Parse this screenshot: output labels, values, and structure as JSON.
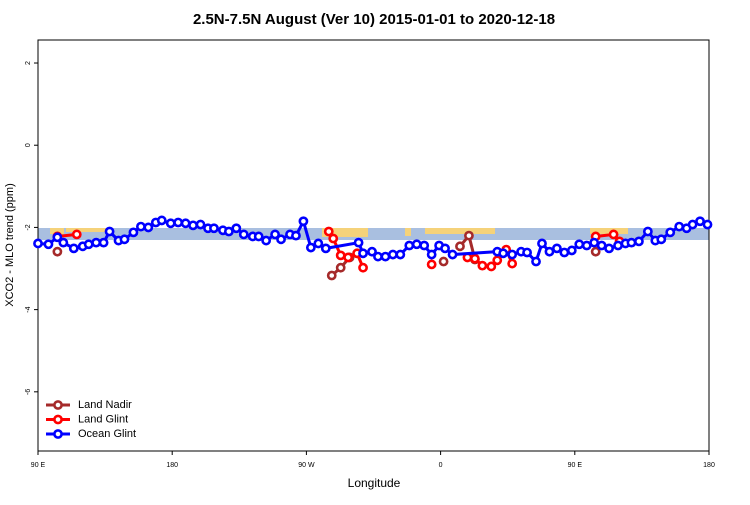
{
  "chart_data": {
    "type": "line",
    "title": "2.5N-7.5N August (Ver 10)   2015-01-01 to 2020-12-18",
    "x_label": "Longitude",
    "y_label": "XCO2 - MLO trend (ppm)",
    "xlim": [
      90,
      540
    ],
    "xticks": [
      {
        "value": 90,
        "label": "90 E"
      },
      {
        "value": 180,
        "label": "180"
      },
      {
        "value": 270,
        "label": "90 W"
      },
      {
        "value": 360,
        "label": "0"
      },
      {
        "value": 450,
        "label": "90 E"
      },
      {
        "value": 540,
        "label": "180"
      }
    ],
    "ylim": [
      -7.44,
      2.56
    ],
    "yticks": [
      2,
      0,
      -2,
      -4,
      -6
    ],
    "legend": "bottom-left",
    "series": [
      {
        "name": "Land Nadir",
        "color": "#a52a2a",
        "x": [
          103,
          null,
          287,
          293,
          299,
          null,
          362,
          null,
          373,
          379,
          383,
          null,
          464
        ],
        "values": [
          -2.59,
          null,
          -3.17,
          -2.98,
          -2.73,
          null,
          -2.83,
          null,
          -2.46,
          -2.2,
          -2.78,
          null,
          -2.59
        ]
      },
      {
        "name": "Land Glint",
        "color": "#ff0000",
        "x": [
          103,
          116,
          null,
          285,
          288,
          293,
          298,
          304,
          308,
          null,
          354,
          null,
          378,
          383,
          388,
          394,
          398,
          404,
          408,
          null,
          464,
          476,
          480
        ],
        "values": [
          -2.22,
          -2.17,
          null,
          -2.1,
          -2.27,
          -2.68,
          -2.73,
          -2.63,
          -2.98,
          null,
          -2.9,
          null,
          -2.73,
          -2.76,
          -2.93,
          -2.95,
          -2.8,
          -2.54,
          -2.88,
          null,
          -2.22,
          -2.17,
          -2.34
        ]
      },
      {
        "name": "Ocean Glint",
        "color": "#0000ff",
        "x": [
          90,
          97,
          103,
          107,
          114,
          120,
          124,
          129,
          134,
          138,
          144,
          148,
          154,
          159,
          164,
          169,
          173,
          179,
          184,
          189,
          194,
          199,
          204,
          208,
          214,
          218,
          223,
          228,
          234,
          238,
          243,
          249,
          253,
          259,
          263,
          268,
          273,
          278,
          283,
          305,
          308,
          314,
          318,
          323,
          328,
          333,
          339,
          344,
          349,
          354,
          359,
          363,
          368,
          398,
          402,
          408,
          414,
          418,
          424,
          428,
          433,
          438,
          443,
          448,
          453,
          458,
          463,
          468,
          473,
          479,
          484,
          488,
          493,
          499,
          504,
          508,
          514,
          520,
          525,
          529,
          534,
          539
        ],
        "values": [
          -2.39,
          -2.41,
          -2.24,
          -2.37,
          -2.51,
          -2.46,
          -2.41,
          -2.37,
          -2.37,
          -2.1,
          -2.32,
          -2.29,
          -2.12,
          -1.98,
          -2.0,
          -1.88,
          -1.83,
          -1.9,
          -1.88,
          -1.9,
          -1.95,
          -1.93,
          -2.02,
          -2.02,
          -2.07,
          -2.1,
          -2.02,
          -2.17,
          -2.22,
          -2.22,
          -2.32,
          -2.17,
          -2.29,
          -2.17,
          -2.2,
          -1.85,
          -2.49,
          -2.39,
          -2.51,
          -2.37,
          -2.63,
          -2.59,
          -2.71,
          -2.71,
          -2.66,
          -2.66,
          -2.44,
          -2.41,
          -2.44,
          -2.66,
          -2.44,
          -2.51,
          -2.66,
          -2.59,
          -2.63,
          -2.66,
          -2.59,
          -2.61,
          -2.83,
          -2.39,
          -2.59,
          -2.51,
          -2.61,
          -2.56,
          -2.41,
          -2.44,
          -2.37,
          -2.44,
          -2.51,
          -2.44,
          -2.39,
          -2.37,
          -2.34,
          -2.1,
          -2.32,
          -2.29,
          -2.12,
          -1.98,
          -2.02,
          -1.93,
          -1.85,
          -1.93
        ]
      }
    ]
  }
}
